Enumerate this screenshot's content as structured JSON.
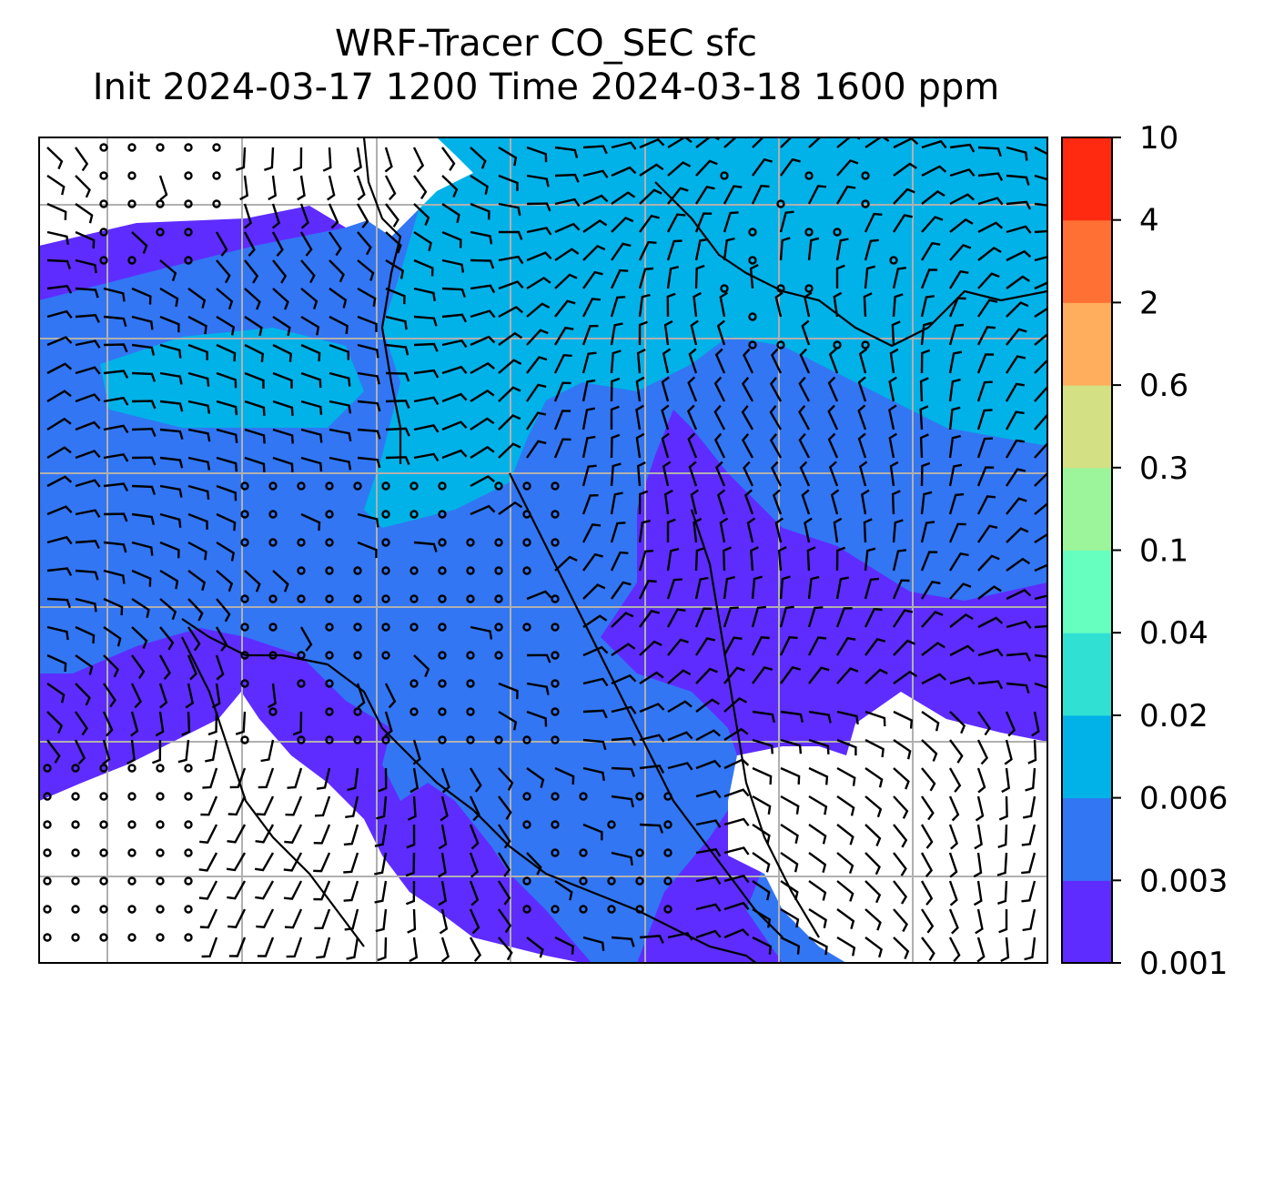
{
  "title": {
    "line1": "WRF-Tracer CO_SEC sfc",
    "line2": "Init 2024-03-17 1200 Time 2024-03-18 1600 ppm"
  },
  "colorbar": {
    "levels": [
      "0.001",
      "0.003",
      "0.006",
      "0.02",
      "0.04",
      "0.1",
      "0.3",
      "0.6",
      "2",
      "4",
      "10"
    ],
    "colors": [
      "#5e2cff",
      "#3276f3",
      "#00b2e8",
      "#30e0d2",
      "#66ffc0",
      "#9cf59a",
      "#d3e083",
      "#ffae5e",
      "#ff7035",
      "#ff2a10"
    ]
  },
  "map": {
    "background": "#ffffff",
    "gridline_color": "#b0b0b0",
    "coastline_color": "#000000",
    "barb_color": "#000000"
  }
}
